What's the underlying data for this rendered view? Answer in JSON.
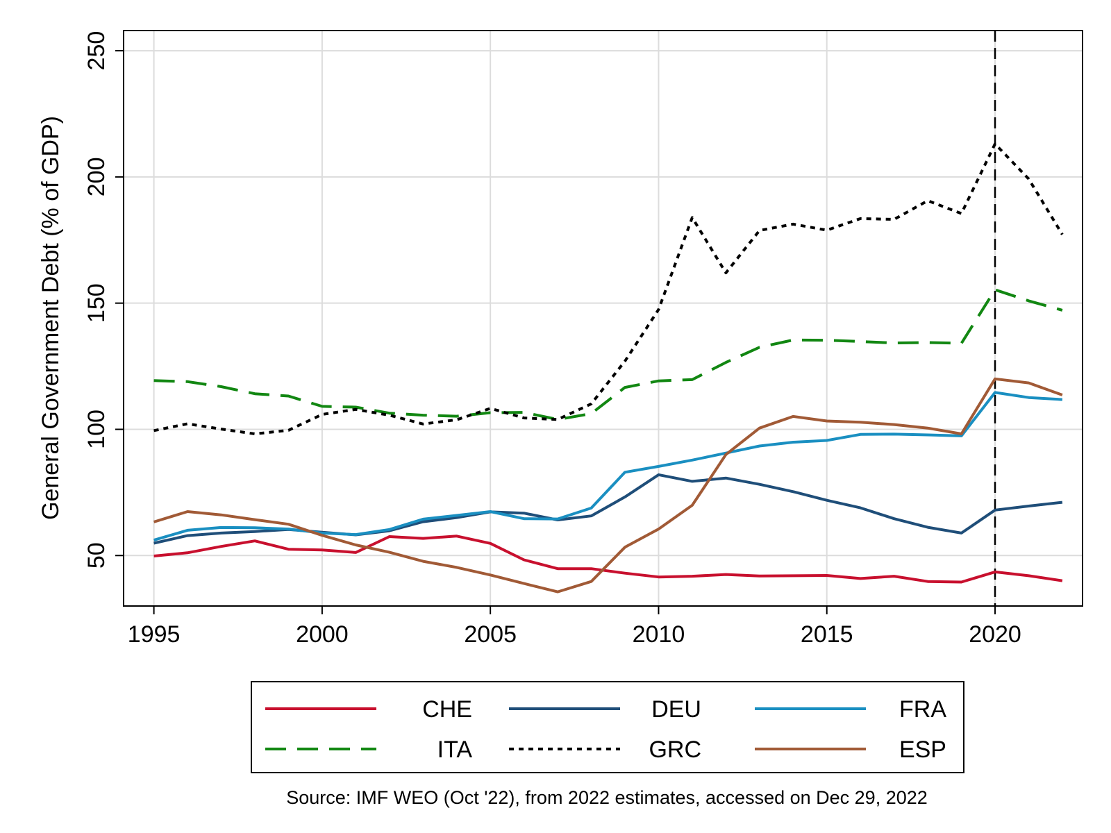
{
  "chart_data": {
    "type": "line",
    "title": "",
    "xlabel": "",
    "ylabel": "General Government Debt (% of GDP)",
    "xlim": [
      1994.1,
      2022.6
    ],
    "ylim": [
      30,
      258
    ],
    "xticks": [
      1995,
      2000,
      2005,
      2010,
      2015,
      2020
    ],
    "yticks": [
      50,
      100,
      150,
      200,
      250
    ],
    "grid": true,
    "vertical_reference_line": 2020,
    "legend_position": "bottom",
    "source_note": "Source: IMF WEO (Oct '22), from 2022 estimates, accessed on Dec 29, 2022",
    "x": [
      1995,
      1996,
      1997,
      1998,
      1999,
      2000,
      2001,
      2002,
      2003,
      2004,
      2005,
      2006,
      2007,
      2008,
      2009,
      2010,
      2011,
      2012,
      2013,
      2014,
      2015,
      2016,
      2017,
      2018,
      2019,
      2020,
      2021,
      2022
    ],
    "series": [
      {
        "name": "CHE",
        "color": "#c8102e",
        "dash": "solid",
        "values": [
          49.8,
          51.1,
          53.6,
          55.8,
          52.5,
          52.2,
          51.2,
          57.5,
          56.8,
          57.7,
          54.8,
          48.3,
          44.8,
          44.8,
          43.0,
          41.5,
          41.8,
          42.5,
          41.9,
          42.0,
          42.1,
          40.9,
          41.8,
          39.7,
          39.5,
          43.5,
          42.0,
          40.0
        ]
      },
      {
        "name": "DEU",
        "color": "#1f4e79",
        "dash": "solid",
        "values": [
          54.9,
          57.9,
          58.9,
          59.5,
          60.3,
          59.2,
          58.2,
          59.8,
          63.4,
          65.0,
          67.3,
          66.8,
          64.1,
          65.7,
          73.2,
          82.0,
          79.4,
          80.7,
          78.2,
          75.3,
          71.9,
          68.9,
          64.6,
          61.2,
          58.9,
          68.0,
          69.6,
          71.1
        ]
      },
      {
        "name": "FRA",
        "color": "#1a8fc1",
        "dash": "solid",
        "values": [
          56.1,
          60.0,
          61.1,
          61.0,
          60.5,
          58.9,
          58.3,
          60.3,
          64.4,
          65.9,
          67.4,
          64.6,
          64.5,
          68.8,
          83.0,
          85.3,
          87.8,
          90.6,
          93.4,
          94.9,
          95.6,
          98.0,
          98.1,
          97.8,
          97.4,
          114.6,
          112.6,
          111.8
        ]
      },
      {
        "name": "ITA",
        "color": "#128712",
        "dash": "dashed",
        "values": [
          119.3,
          118.9,
          116.9,
          114.1,
          113.2,
          109.1,
          108.8,
          106.4,
          105.6,
          105.2,
          106.6,
          106.7,
          103.9,
          106.2,
          116.6,
          119.2,
          119.7,
          126.5,
          132.5,
          135.4,
          135.3,
          134.8,
          134.2,
          134.4,
          134.1,
          155.3,
          150.9,
          147.2
        ]
      },
      {
        "name": "GRC",
        "color": "#000000",
        "dash": "dotted",
        "values": [
          99.5,
          102.2,
          100.1,
          98.2,
          99.6,
          105.9,
          107.9,
          105.6,
          102.1,
          103.8,
          108.3,
          104.5,
          103.9,
          110.1,
          127.0,
          147.5,
          183.9,
          162.0,
          178.8,
          181.3,
          178.9,
          183.5,
          183.2,
          190.6,
          185.5,
          213.1,
          199.2,
          177.2
        ]
      },
      {
        "name": "ESP",
        "color": "#a15a36",
        "dash": "solid",
        "values": [
          63.3,
          67.4,
          66.1,
          64.2,
          62.4,
          58.0,
          54.2,
          51.3,
          47.7,
          45.3,
          42.3,
          38.9,
          35.6,
          39.7,
          53.3,
          60.5,
          69.9,
          90.0,
          100.5,
          105.1,
          103.3,
          102.8,
          101.9,
          100.5,
          98.2,
          120.0,
          118.4,
          113.6
        ]
      }
    ]
  }
}
